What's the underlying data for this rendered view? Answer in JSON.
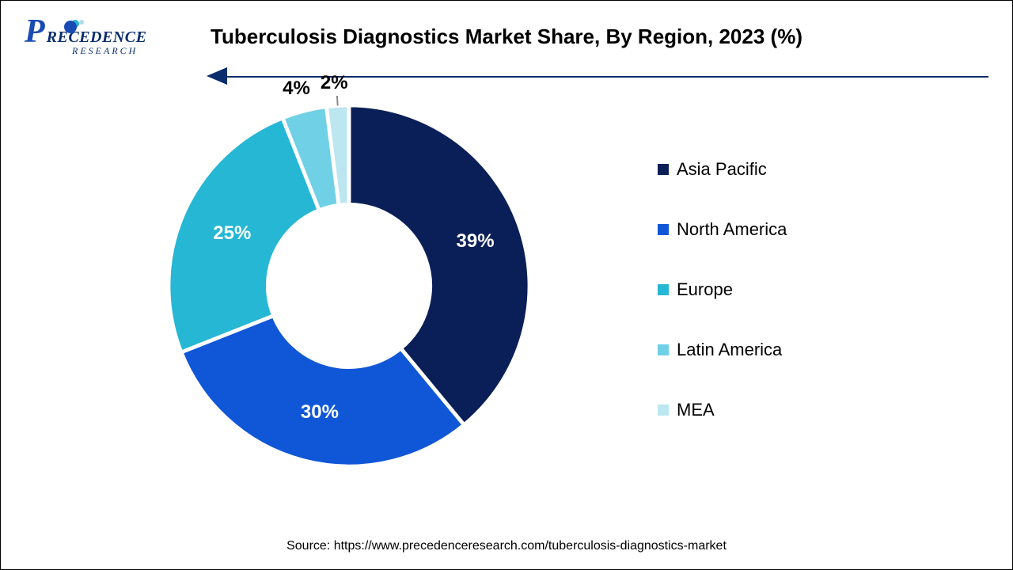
{
  "logo": {
    "primary": "P",
    "text": "RECEDENCE",
    "sub": "RESEARCH"
  },
  "title": "Tuberculosis Diagnostics Market Share, By Region, 2023 (%)",
  "chart": {
    "type": "donut",
    "background_color": "#ffffff",
    "inner_radius_ratio": 0.45,
    "start_angle_deg": 0,
    "slices": [
      {
        "label": "Asia Pacific",
        "value": 39,
        "display": "39%",
        "color": "#0a1f57",
        "label_color": "#ffffff"
      },
      {
        "label": "North America",
        "value": 30,
        "display": "30%",
        "color": "#1057d8",
        "label_color": "#ffffff"
      },
      {
        "label": "Europe",
        "value": 25,
        "display": "25%",
        "color": "#25b7d3",
        "label_color": "#ffffff"
      },
      {
        "label": "Latin America",
        "value": 4,
        "display": "4%",
        "color": "#6fd0e6",
        "label_color": "#000000"
      },
      {
        "label": "MEA",
        "value": 2,
        "display": "2%",
        "color": "#bde7f0",
        "label_color": "#000000"
      }
    ],
    "label_fontsize": 24,
    "slice_stroke": "#ffffff",
    "slice_stroke_width": 2
  },
  "legend": {
    "fontsize": 22,
    "marker_size": 14
  },
  "source": "Source: https://www.precedenceresearch.com/tuberculosis-diagnostics-market"
}
